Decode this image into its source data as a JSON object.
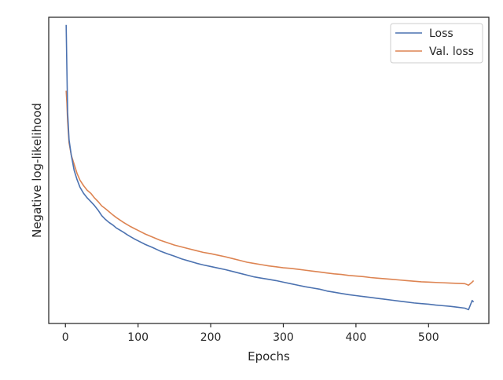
{
  "chart_data": {
    "type": "line",
    "title": "",
    "xlabel": "Epochs",
    "ylabel": "Negative log-likelihood",
    "xlim": [
      -23,
      583
    ],
    "ylim": [
      0,
      1
    ],
    "x_ticks": [
      0,
      100,
      200,
      300,
      400,
      500
    ],
    "y_ticks": [],
    "grid": false,
    "legend_position": "top-right",
    "series": [
      {
        "name": "Loss",
        "color": "#4c72b0",
        "x": [
          1,
          2,
          3,
          5,
          8,
          12,
          16,
          20,
          25,
          30,
          35,
          40,
          45,
          50,
          55,
          60,
          65,
          70,
          75,
          80,
          85,
          90,
          95,
          100,
          110,
          120,
          130,
          140,
          150,
          160,
          170,
          180,
          190,
          200,
          210,
          220,
          230,
          240,
          250,
          260,
          270,
          280,
          290,
          300,
          310,
          320,
          330,
          340,
          350,
          360,
          370,
          380,
          390,
          400,
          410,
          420,
          430,
          440,
          450,
          460,
          470,
          480,
          490,
          500,
          510,
          520,
          530,
          540,
          550,
          555,
          560,
          562
        ],
        "values": [
          0.975,
          0.83,
          0.69,
          0.6,
          0.55,
          0.5,
          0.47,
          0.445,
          0.425,
          0.41,
          0.398,
          0.385,
          0.37,
          0.352,
          0.34,
          0.33,
          0.322,
          0.312,
          0.305,
          0.298,
          0.29,
          0.283,
          0.276,
          0.27,
          0.258,
          0.248,
          0.237,
          0.228,
          0.22,
          0.211,
          0.204,
          0.197,
          0.191,
          0.186,
          0.181,
          0.176,
          0.17,
          0.164,
          0.158,
          0.152,
          0.148,
          0.144,
          0.14,
          0.135,
          0.13,
          0.125,
          0.12,
          0.116,
          0.112,
          0.106,
          0.102,
          0.098,
          0.094,
          0.091,
          0.088,
          0.085,
          0.082,
          0.079,
          0.076,
          0.073,
          0.07,
          0.067,
          0.065,
          0.063,
          0.06,
          0.058,
          0.056,
          0.053,
          0.05,
          0.045,
          0.075,
          0.07
        ]
      },
      {
        "name": "Val. loss",
        "color": "#dd8452",
        "x": [
          1,
          2,
          3,
          5,
          8,
          12,
          16,
          20,
          25,
          30,
          35,
          40,
          45,
          50,
          55,
          60,
          65,
          70,
          75,
          80,
          85,
          90,
          95,
          100,
          110,
          120,
          130,
          140,
          150,
          160,
          170,
          180,
          190,
          200,
          210,
          220,
          230,
          240,
          250,
          260,
          270,
          280,
          290,
          300,
          310,
          320,
          330,
          340,
          350,
          360,
          370,
          380,
          390,
          400,
          410,
          420,
          430,
          440,
          450,
          460,
          470,
          480,
          490,
          500,
          510,
          520,
          530,
          540,
          550,
          555,
          560,
          562
        ],
        "values": [
          0.76,
          0.72,
          0.66,
          0.59,
          0.55,
          0.52,
          0.49,
          0.468,
          0.45,
          0.435,
          0.425,
          0.41,
          0.398,
          0.384,
          0.375,
          0.365,
          0.355,
          0.346,
          0.338,
          0.33,
          0.323,
          0.316,
          0.31,
          0.304,
          0.292,
          0.282,
          0.272,
          0.264,
          0.256,
          0.25,
          0.244,
          0.238,
          0.232,
          0.228,
          0.223,
          0.218,
          0.212,
          0.206,
          0.2,
          0.196,
          0.192,
          0.188,
          0.185,
          0.182,
          0.18,
          0.177,
          0.174,
          0.171,
          0.168,
          0.165,
          0.162,
          0.16,
          0.157,
          0.155,
          0.153,
          0.15,
          0.148,
          0.146,
          0.144,
          0.142,
          0.14,
          0.138,
          0.136,
          0.135,
          0.134,
          0.133,
          0.132,
          0.131,
          0.13,
          0.125,
          0.135,
          0.14
        ]
      }
    ]
  }
}
